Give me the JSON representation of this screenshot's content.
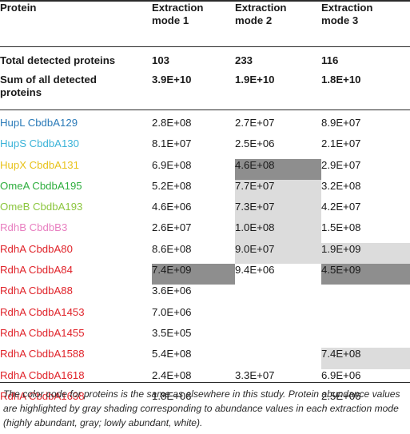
{
  "table": {
    "header": {
      "protein": "Protein",
      "mode1_line1": "Extraction",
      "mode1_line2": "mode 1",
      "mode2_line1": "Extraction",
      "mode2_line2": "mode 2",
      "mode3_line1": "Extraction",
      "mode3_line2": "mode 3"
    },
    "summary": [
      {
        "label_line1": "Total detected proteins",
        "label_line2": "",
        "values": [
          "103",
          "233",
          "116"
        ]
      },
      {
        "label_line1": "Sum of all detected",
        "label_line2": "proteins",
        "values": [
          "3.9E+10",
          "1.9E+10",
          "1.8E+10"
        ]
      }
    ],
    "rows": [
      {
        "name": "HupL CbdbA129",
        "color": "#2a7ab8",
        "values": [
          "2.8E+08",
          "2.7E+07",
          "8.9E+07"
        ],
        "shade": [
          "none",
          "none",
          "none"
        ]
      },
      {
        "name": "HupS CbdbA130",
        "color": "#3bb3d8",
        "values": [
          "8.1E+07",
          "2.5E+06",
          "2.1E+07"
        ],
        "shade": [
          "none",
          "none",
          "none"
        ]
      },
      {
        "name": "HupX CbdbA131",
        "color": "#e8c21a",
        "values": [
          "6.9E+08",
          "4.6E+08",
          "2.9E+07"
        ],
        "shade": [
          "none",
          "dark",
          "none"
        ]
      },
      {
        "name": "OmeA CbdbA195",
        "color": "#2fae3f",
        "values": [
          "5.2E+08",
          "7.7E+07",
          "3.2E+08"
        ],
        "shade": [
          "none",
          "light",
          "none"
        ]
      },
      {
        "name": "OmeB CbdbA193",
        "color": "#8cc63f",
        "values": [
          "4.6E+06",
          "7.3E+07",
          "4.2E+07"
        ],
        "shade": [
          "none",
          "light",
          "none"
        ]
      },
      {
        "name": "RdhB CbdbB3",
        "color": "#e87fc0",
        "values": [
          "2.6E+07",
          "1.0E+08",
          "1.5E+08"
        ],
        "shade": [
          "none",
          "light",
          "none"
        ]
      },
      {
        "name": "RdhA CbdbA80",
        "color": "#e0242b",
        "values": [
          "8.6E+08",
          "9.0E+07",
          "1.9E+09"
        ],
        "shade": [
          "none",
          "light",
          "light"
        ]
      },
      {
        "name": "RdhA CbdbA84",
        "color": "#e0242b",
        "values": [
          "7.4E+09",
          "9.4E+06",
          "4.5E+09"
        ],
        "shade": [
          "dark",
          "none",
          "dark"
        ]
      },
      {
        "name": "RdhA CbdbA88",
        "color": "#e0242b",
        "values": [
          "3.6E+06",
          "",
          ""
        ],
        "shade": [
          "none",
          "none",
          "none"
        ]
      },
      {
        "name": "RdhA CbdbA1453",
        "color": "#e0242b",
        "values": [
          "7.0E+06",
          "",
          ""
        ],
        "shade": [
          "none",
          "none",
          "none"
        ]
      },
      {
        "name": "RdhA CbdbA1455",
        "color": "#e0242b",
        "values": [
          "3.5E+05",
          "",
          ""
        ],
        "shade": [
          "none",
          "none",
          "none"
        ]
      },
      {
        "name": "RdhA CbdbA1588",
        "color": "#e0242b",
        "values": [
          "5.4E+08",
          "",
          "7.4E+08"
        ],
        "shade": [
          "none",
          "none",
          "light"
        ]
      },
      {
        "name": "RdhA CbdbA1618",
        "color": "#e0242b",
        "values": [
          "2.4E+08",
          "3.3E+07",
          "6.9E+06"
        ],
        "shade": [
          "none",
          "none",
          "none"
        ]
      },
      {
        "name": "RdhA CbdbA1638",
        "color": "#e0242b",
        "values": [
          "1.8E+06",
          "",
          "2.5E+06"
        ],
        "shade": [
          "none",
          "none",
          "none"
        ]
      }
    ]
  },
  "footnote": "The color code for proteins is the same as elsewhere in this study. Protein abundance values are highlighted by gray shading corresponding to abundance values in each extraction mode (highly abundant, gray; lowly abundant, white)."
}
